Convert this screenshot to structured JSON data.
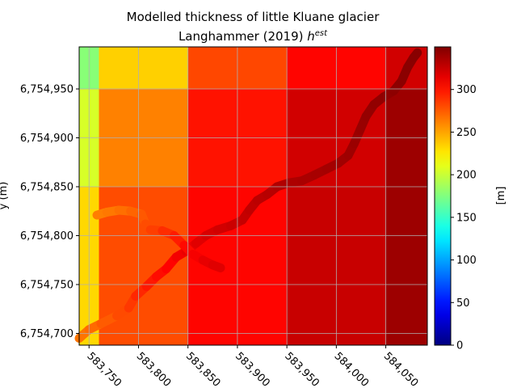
{
  "chart_data": {
    "type": "heatmap",
    "title": "Modelled thickness of little Kluane glacier",
    "subtitle_main": "Langhammer (2019) ",
    "subtitle_math_base": "h",
    "subtitle_math_sup": "est",
    "xlabel": "",
    "ylabel": "y (m)",
    "colorbar_label": "[m]",
    "xlim": [
      583740,
      584092
    ],
    "ylim": [
      6754688,
      6754993
    ],
    "grid": true,
    "x_ticks": [
      583750,
      583800,
      583850,
      583900,
      583950,
      584000,
      584050
    ],
    "x_tick_labels": [
      "583,750",
      "583,800",
      "583,850",
      "583,900",
      "583,950",
      "584,000",
      "584,050"
    ],
    "y_ticks": [
      6754700,
      6754750,
      6754800,
      6754850,
      6754900,
      6754950
    ],
    "y_tick_labels": [
      "6,754,700",
      "6,754,750",
      "6,754,800",
      "6,754,850",
      "6,754,900",
      "6,754,950"
    ],
    "colorbar": {
      "min": 0,
      "max": 350,
      "ticks": [
        0,
        50,
        100,
        150,
        200,
        250,
        300
      ],
      "tick_labels": [
        "0",
        "50",
        "100",
        "150",
        "200",
        "250",
        "300"
      ],
      "colormap": "jet"
    },
    "x_edges": [
      583740,
      583760,
      583850,
      583950,
      584050,
      584092
    ],
    "y_edges": [
      6754688,
      6754850,
      6754950,
      6754993
    ],
    "cells": [
      [
        {
          "x0": 583740,
          "x1": 583760,
          "y0": 6754688,
          "y1": 6754850,
          "z": 232
        },
        {
          "x0": 583740,
          "x1": 583760,
          "y0": 6754850,
          "y1": 6754950,
          "z": 205
        },
        {
          "x0": 583740,
          "x1": 583760,
          "y0": 6754950,
          "y1": 6754993,
          "z": 178
        }
      ],
      [
        {
          "x0": 583760,
          "x1": 583850,
          "y0": 6754688,
          "y1": 6754850,
          "z": 280
        },
        {
          "x0": 583760,
          "x1": 583850,
          "y0": 6754850,
          "y1": 6754950,
          "z": 262
        },
        {
          "x0": 583760,
          "x1": 583850,
          "y0": 6754950,
          "y1": 6754993,
          "z": 235
        }
      ],
      [
        {
          "x0": 583850,
          "x1": 583950,
          "y0": 6754688,
          "y1": 6754850,
          "z": 305
        },
        {
          "x0": 583850,
          "x1": 583950,
          "y0": 6754850,
          "y1": 6754950,
          "z": 300
        },
        {
          "x0": 583850,
          "x1": 583950,
          "y0": 6754950,
          "y1": 6754993,
          "z": 282
        }
      ],
      [
        {
          "x0": 583950,
          "x1": 584050,
          "y0": 6754688,
          "y1": 6754850,
          "z": 325
        },
        {
          "x0": 583950,
          "x1": 584050,
          "y0": 6754850,
          "y1": 6754950,
          "z": 322
        },
        {
          "x0": 583950,
          "x1": 584050,
          "y0": 6754950,
          "y1": 6754993,
          "z": 305
        }
      ],
      [
        {
          "x0": 584050,
          "x1": 584092,
          "y0": 6754688,
          "y1": 6754850,
          "z": 340
        },
        {
          "x0": 584050,
          "x1": 584092,
          "y0": 6754850,
          "y1": 6754950,
          "z": 340
        },
        {
          "x0": 584050,
          "x1": 584092,
          "y0": 6754950,
          "y1": 6754993,
          "z": 322
        }
      ]
    ],
    "track_segments": [
      {
        "name": "",
        "points": [
          {
            "x": 583740,
            "y": 6754695,
            "z": 265
          },
          {
            "x": 583750,
            "y": 6754704,
            "z": 268
          },
          {
            "x": 583762,
            "y": 6754710,
            "z": 272
          },
          {
            "x": 583778,
            "y": 6754718,
            "z": 278
          },
          {
            "x": 583790,
            "y": 6754726,
            "z": 284
          },
          {
            "x": 583797,
            "y": 6754738,
            "z": 290
          },
          {
            "x": 583808,
            "y": 6754748,
            "z": 296
          },
          {
            "x": 583818,
            "y": 6754758,
            "z": 300
          },
          {
            "x": 583828,
            "y": 6754766,
            "z": 304
          },
          {
            "x": 583838,
            "y": 6754778,
            "z": 308
          },
          {
            "x": 583848,
            "y": 6754784,
            "z": 312
          },
          {
            "x": 583858,
            "y": 6754792,
            "z": 315
          },
          {
            "x": 583868,
            "y": 6754800,
            "z": 318
          },
          {
            "x": 583880,
            "y": 6754806,
            "z": 321
          },
          {
            "x": 583893,
            "y": 6754810,
            "z": 323
          },
          {
            "x": 583905,
            "y": 6754816,
            "z": 325
          },
          {
            "x": 583912,
            "y": 6754826,
            "z": 327
          },
          {
            "x": 583920,
            "y": 6754836,
            "z": 329
          },
          {
            "x": 583930,
            "y": 6754842,
            "z": 330
          },
          {
            "x": 583940,
            "y": 6754850,
            "z": 332
          },
          {
            "x": 583952,
            "y": 6754854,
            "z": 334
          },
          {
            "x": 583965,
            "y": 6754856,
            "z": 335
          },
          {
            "x": 583978,
            "y": 6754862,
            "z": 336
          },
          {
            "x": 583990,
            "y": 6754868,
            "z": 337
          },
          {
            "x": 584002,
            "y": 6754874,
            "z": 338
          },
          {
            "x": 584012,
            "y": 6754882,
            "z": 339
          },
          {
            "x": 584018,
            "y": 6754894,
            "z": 340
          },
          {
            "x": 584024,
            "y": 6754908,
            "z": 341
          },
          {
            "x": 584030,
            "y": 6754922,
            "z": 342
          },
          {
            "x": 584038,
            "y": 6754934,
            "z": 343
          },
          {
            "x": 584048,
            "y": 6754942,
            "z": 344
          },
          {
            "x": 584058,
            "y": 6754948,
            "z": 345
          },
          {
            "x": 584066,
            "y": 6754958,
            "z": 346
          },
          {
            "x": 584072,
            "y": 6754972,
            "z": 346
          },
          {
            "x": 584078,
            "y": 6754982,
            "z": 347
          },
          {
            "x": 584082,
            "y": 6754987,
            "z": 347
          }
        ]
      },
      {
        "name": "",
        "points": [
          {
            "x": 583758,
            "y": 6754821,
            "z": 262
          },
          {
            "x": 583768,
            "y": 6754824,
            "z": 264
          },
          {
            "x": 583780,
            "y": 6754826,
            "z": 266
          },
          {
            "x": 583792,
            "y": 6754825,
            "z": 270
          },
          {
            "x": 583803,
            "y": 6754822,
            "z": 274
          },
          {
            "x": 583807,
            "y": 6754812,
            "z": 278
          },
          {
            "x": 583812,
            "y": 6754806,
            "z": 282
          },
          {
            "x": 583824,
            "y": 6754805,
            "z": 288
          },
          {
            "x": 583836,
            "y": 6754800,
            "z": 294
          },
          {
            "x": 583846,
            "y": 6754790,
            "z": 300
          },
          {
            "x": 583855,
            "y": 6754781,
            "z": 306
          },
          {
            "x": 583865,
            "y": 6754775,
            "z": 312
          },
          {
            "x": 583875,
            "y": 6754770,
            "z": 316
          },
          {
            "x": 583883,
            "y": 6754767,
            "z": 318
          }
        ]
      }
    ]
  }
}
